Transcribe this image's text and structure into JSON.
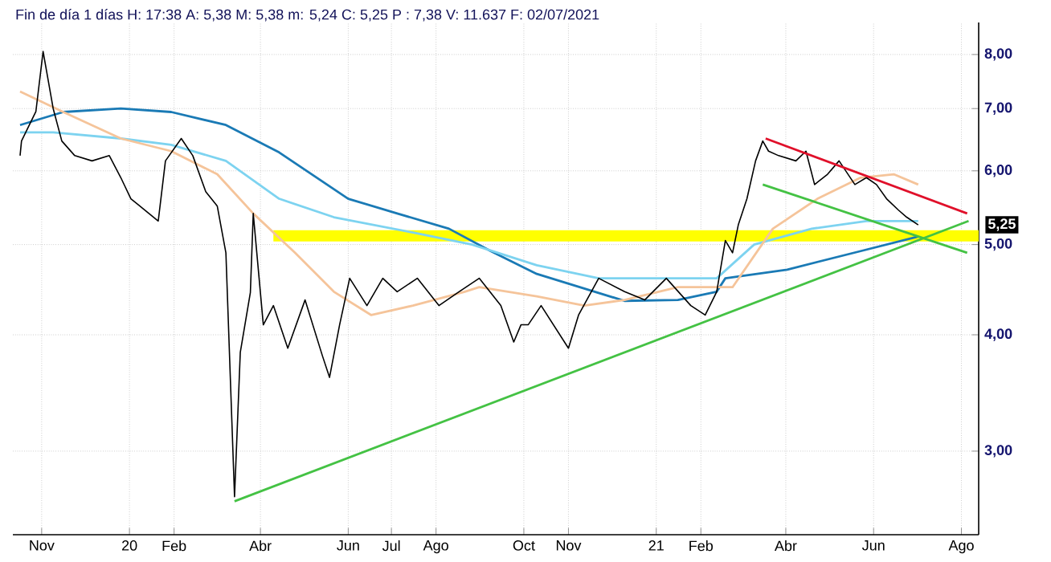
{
  "chart_data": {
    "type": "line",
    "title": "Fin de día 1 días  H: 17:38  A: 5,38  M: 5,38  m: 5,24  C: 5,25  P : 7,38  V: 11.637  F: 02/07/2021",
    "log": "y",
    "grid": true,
    "xlim": [
      "2019-10-12",
      "2021-08-13"
    ],
    "xticks": [
      {
        "value": "2019-11-01",
        "label": "Nov"
      },
      {
        "value": "2020-01-01",
        "label": "20"
      },
      {
        "value": "2020-02-01",
        "label": "Feb"
      },
      {
        "value": "2020-04-01",
        "label": "Abr"
      },
      {
        "value": "2020-06-01",
        "label": "Jun"
      },
      {
        "value": "2020-07-01",
        "label": "Jul"
      },
      {
        "value": "2020-08-01",
        "label": "Ago"
      },
      {
        "value": "2020-10-01",
        "label": "Oct"
      },
      {
        "value": "2020-11-01",
        "label": "Nov"
      },
      {
        "value": "2021-01-01",
        "label": "21"
      },
      {
        "value": "2021-02-01",
        "label": "Feb"
      },
      {
        "value": "2021-04-01",
        "label": "Abr"
      },
      {
        "value": "2021-06-01",
        "label": "Jun"
      },
      {
        "value": "2021-08-01",
        "label": "Ago"
      }
    ],
    "ylim": [
      2.44,
      8.66
    ],
    "yticks": [
      {
        "value": 3,
        "label": "3,00"
      },
      {
        "value": 4,
        "label": "4,00"
      },
      {
        "value": 5,
        "label": "5,00"
      },
      {
        "value": 6,
        "label": "6,00"
      },
      {
        "value": 7,
        "label": "7,00"
      },
      {
        "value": 8,
        "label": "8,00"
      }
    ],
    "annotations": [
      "5,25"
    ],
    "series": [
      {
        "color": "#ffff00",
        "x": [
          "2020-04-10",
          "2021-08-13"
        ],
        "values": [
          5.11,
          5.11
        ]
      },
      {
        "type": "line",
        "color": "#1a7ab5",
        "x": [
          "2019-10-17",
          "2019-11-16",
          "2019-12-26",
          "2020-01-30",
          "2020-03-08",
          "2020-04-14",
          "2020-06-01",
          "2020-07-05",
          "2020-08-10",
          "2020-09-08",
          "2020-10-10",
          "2020-12-10",
          "2021-01-16",
          "2021-02-12",
          "2021-02-18",
          "2021-04-02",
          "2021-05-23",
          "2021-07-02"
        ],
        "values": [
          6.72,
          6.94,
          7.0,
          6.94,
          6.72,
          6.28,
          5.6,
          5.4,
          5.2,
          4.92,
          4.65,
          4.35,
          4.36,
          4.45,
          4.6,
          4.7,
          4.92,
          5.1
        ]
      },
      {
        "type": "line",
        "color": "#7dd3f0",
        "x": [
          "2019-10-17",
          "2019-11-09",
          "2019-12-26",
          "2020-01-30",
          "2020-03-08",
          "2020-04-14",
          "2020-05-22",
          "2020-07-16",
          "2020-08-26",
          "2020-10-10",
          "2020-11-22",
          "2021-02-12",
          "2021-03-10",
          "2021-04-19",
          "2021-05-27",
          "2021-07-02"
        ],
        "values": [
          6.6,
          6.6,
          6.5,
          6.4,
          6.15,
          5.6,
          5.35,
          5.15,
          5.0,
          4.75,
          4.6,
          4.6,
          5.0,
          5.2,
          5.3,
          5.3
        ]
      },
      {
        "type": "line",
        "color": "#f5c49a",
        "x": [
          "2019-10-17",
          "2019-11-16",
          "2019-12-26",
          "2020-01-30",
          "2020-03-02",
          "2020-03-27",
          "2020-04-25",
          "2020-05-22",
          "2020-06-17",
          "2020-07-16",
          "2020-08-21",
          "2020-08-31",
          "2020-10-10",
          "2020-11-12",
          "2020-12-10",
          "2021-01-16",
          "2021-02-23",
          "2021-03-23",
          "2021-04-23",
          "2021-05-23",
          "2021-06-15",
          "2021-07-02"
        ],
        "values": [
          7.3,
          6.94,
          6.5,
          6.3,
          5.95,
          5.4,
          4.9,
          4.45,
          4.2,
          4.3,
          4.45,
          4.5,
          4.4,
          4.3,
          4.36,
          4.5,
          4.5,
          5.2,
          5.6,
          5.9,
          5.95,
          5.8
        ]
      },
      {
        "type": "line",
        "color": "#000000",
        "x": [
          "2019-10-17",
          "2019-10-18",
          "2019-10-28",
          "2019-11-02",
          "2019-11-09",
          "2019-11-15",
          "2019-11-24",
          "2019-12-06",
          "2019-12-18",
          "2019-12-26",
          "2020-01-02",
          "2020-01-21",
          "2020-01-26",
          "2020-02-06",
          "2020-02-14",
          "2020-02-23",
          "2020-03-02",
          "2020-03-08",
          "2020-03-14",
          "2020-03-18",
          "2020-03-25",
          "2020-03-27",
          "2020-04-03",
          "2020-04-10",
          "2020-04-20",
          "2020-05-02",
          "2020-05-14",
          "2020-05-19",
          "2020-05-26",
          "2020-06-02",
          "2020-06-14",
          "2020-06-25",
          "2020-07-05",
          "2020-07-19",
          "2020-08-03",
          "2020-08-17",
          "2020-08-31",
          "2020-09-15",
          "2020-09-24",
          "2020-09-29",
          "2020-10-04",
          "2020-10-13",
          "2020-11-01",
          "2020-11-08",
          "2020-11-22",
          "2020-12-10",
          "2020-12-24",
          "2021-01-08",
          "2021-01-25",
          "2021-02-04",
          "2021-02-12",
          "2021-02-18",
          "2021-02-23",
          "2021-02-27",
          "2021-03-05",
          "2021-03-11",
          "2021-03-16",
          "2021-03-20",
          "2021-03-27",
          "2021-04-08",
          "2021-04-15",
          "2021-04-21",
          "2021-04-30",
          "2021-05-08",
          "2021-05-19",
          "2021-05-27",
          "2021-06-03",
          "2021-06-10",
          "2021-06-18",
          "2021-06-24",
          "2021-07-02"
        ],
        "values": [
          6.23,
          6.46,
          6.95,
          8.06,
          7.0,
          6.46,
          6.23,
          6.15,
          6.23,
          5.9,
          5.6,
          5.3,
          6.15,
          6.5,
          6.23,
          5.7,
          5.5,
          4.9,
          2.68,
          3.83,
          4.44,
          5.4,
          4.1,
          4.3,
          3.87,
          4.36,
          3.8,
          3.6,
          4.1,
          4.6,
          4.3,
          4.6,
          4.45,
          4.6,
          4.3,
          4.45,
          4.6,
          4.3,
          3.93,
          4.1,
          4.1,
          4.3,
          3.87,
          4.2,
          4.6,
          4.45,
          4.36,
          4.6,
          4.3,
          4.2,
          4.45,
          5.05,
          4.9,
          5.25,
          5.6,
          6.15,
          6.46,
          6.3,
          6.23,
          6.15,
          6.3,
          5.8,
          5.95,
          6.15,
          5.8,
          5.9,
          5.8,
          5.6,
          5.45,
          5.35,
          5.25
        ]
      },
      {
        "type": "line",
        "color": "#44c244",
        "x": [
          "2020-03-14",
          "2021-08-06"
        ],
        "values": [
          2.65,
          5.3
        ]
      },
      {
        "type": "line",
        "color": "#44c244",
        "x": [
          "2021-03-16",
          "2021-08-05"
        ],
        "values": [
          5.8,
          4.9
        ]
      },
      {
        "type": "line",
        "color": "#e0102a",
        "x": [
          "2021-03-18",
          "2021-08-05"
        ],
        "values": [
          6.5,
          5.4
        ]
      }
    ]
  }
}
